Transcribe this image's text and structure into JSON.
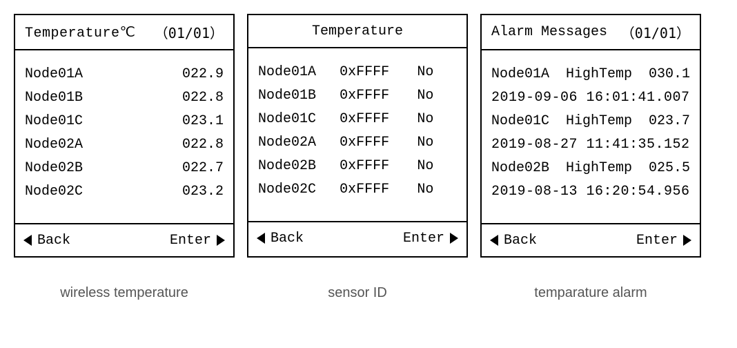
{
  "panels": {
    "temp": {
      "title": "Temperature℃",
      "page": "（01/01）",
      "rows": [
        {
          "node": "Node01A",
          "value": "022.9"
        },
        {
          "node": "Node01B",
          "value": "022.8"
        },
        {
          "node": "Node01C",
          "value": "023.1"
        },
        {
          "node": "Node02A",
          "value": "022.8"
        },
        {
          "node": "Node02B",
          "value": "022.7"
        },
        {
          "node": "Node02C",
          "value": "023.2"
        }
      ],
      "back": "Back",
      "enter": "Enter",
      "caption": "wireless temperature"
    },
    "sensor": {
      "title": "Temperature",
      "rows": [
        {
          "node": "Node01A",
          "id": "0xFFFF",
          "flag": "No"
        },
        {
          "node": "Node01B",
          "id": "0xFFFF",
          "flag": "No"
        },
        {
          "node": "Node01C",
          "id": "0xFFFF",
          "flag": "No"
        },
        {
          "node": "Node02A",
          "id": "0xFFFF",
          "flag": "No"
        },
        {
          "node": "Node02B",
          "id": "0xFFFF",
          "flag": "No"
        },
        {
          "node": "Node02C",
          "id": "0xFFFF",
          "flag": "No"
        }
      ],
      "back": "Back",
      "enter": "Enter",
      "caption": "sensor ID"
    },
    "alarm": {
      "title": "Alarm Messages",
      "page": "（01/01）",
      "entries": [
        {
          "node": "Node01A",
          "type": "HighTemp",
          "value": "030.1",
          "ts": "2019-09-06 16:01:41.007"
        },
        {
          "node": "Node01C",
          "type": "HighTemp",
          "value": "023.7",
          "ts": "2019-08-27 11:41:35.152"
        },
        {
          "node": "Node02B",
          "type": "HighTemp",
          "value": "025.5",
          "ts": "2019-08-13 16:20:54.956"
        }
      ],
      "back": "Back",
      "enter": "Enter",
      "caption": "temparature alarm"
    }
  }
}
